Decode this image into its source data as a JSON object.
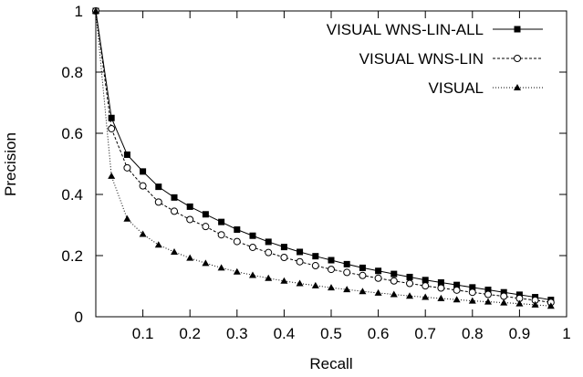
{
  "chart_data": {
    "type": "line",
    "xlabel": "Recall",
    "ylabel": "Precision",
    "xlim": [
      0,
      1
    ],
    "ylim": [
      0,
      1
    ],
    "xticks": [
      0.1,
      0.2,
      0.3,
      0.4,
      0.5,
      0.6,
      0.7,
      0.8,
      0.9,
      1
    ],
    "xtick_labels": [
      "0.1",
      "0.2",
      "0.3",
      "0.4",
      "0.5",
      "0.6",
      "0.7",
      "0.8",
      "0.9",
      "1"
    ],
    "yticks": [
      0,
      0.2,
      0.4,
      0.6,
      0.8,
      1
    ],
    "ytick_labels": [
      "0",
      "0.2",
      "0.4",
      "0.6",
      "0.8",
      "1"
    ],
    "grid": false,
    "legend_position": "top-right",
    "x": [
      0.0,
      0.0333,
      0.0667,
      0.1,
      0.1333,
      0.1667,
      0.2,
      0.2333,
      0.2667,
      0.3,
      0.3333,
      0.3667,
      0.4,
      0.4333,
      0.4667,
      0.5,
      0.5333,
      0.5667,
      0.6,
      0.6333,
      0.6667,
      0.7,
      0.7333,
      0.7667,
      0.8,
      0.8333,
      0.8667,
      0.9,
      0.9333,
      0.9667
    ],
    "series": [
      {
        "name": "VISUAL WNS-LIN-ALL",
        "marker": "filled-square",
        "line": "solid",
        "values": [
          1.0,
          0.65,
          0.53,
          0.475,
          0.425,
          0.39,
          0.36,
          0.335,
          0.31,
          0.285,
          0.265,
          0.245,
          0.228,
          0.212,
          0.198,
          0.185,
          0.172,
          0.16,
          0.15,
          0.14,
          0.13,
          0.12,
          0.112,
          0.104,
          0.096,
          0.088,
          0.08,
          0.072,
          0.064,
          0.055
        ]
      },
      {
        "name": "VISUAL WNS-LIN",
        "marker": "open-circle",
        "line": "dashed",
        "values": [
          1.0,
          0.615,
          0.487,
          0.428,
          0.375,
          0.345,
          0.318,
          0.295,
          0.268,
          0.246,
          0.227,
          0.21,
          0.194,
          0.18,
          0.167,
          0.155,
          0.145,
          0.135,
          0.126,
          0.117,
          0.109,
          0.101,
          0.094,
          0.087,
          0.08,
          0.073,
          0.067,
          0.06,
          0.054,
          0.047
        ]
      },
      {
        "name": "VISUAL",
        "marker": "filled-triangle",
        "line": "dotted",
        "values": [
          1.0,
          0.46,
          0.32,
          0.27,
          0.235,
          0.212,
          0.192,
          0.175,
          0.16,
          0.147,
          0.136,
          0.126,
          0.117,
          0.109,
          0.102,
          0.095,
          0.089,
          0.083,
          0.078,
          0.073,
          0.068,
          0.064,
          0.06,
          0.056,
          0.052,
          0.049,
          0.046,
          0.043,
          0.039,
          0.035
        ]
      }
    ]
  }
}
